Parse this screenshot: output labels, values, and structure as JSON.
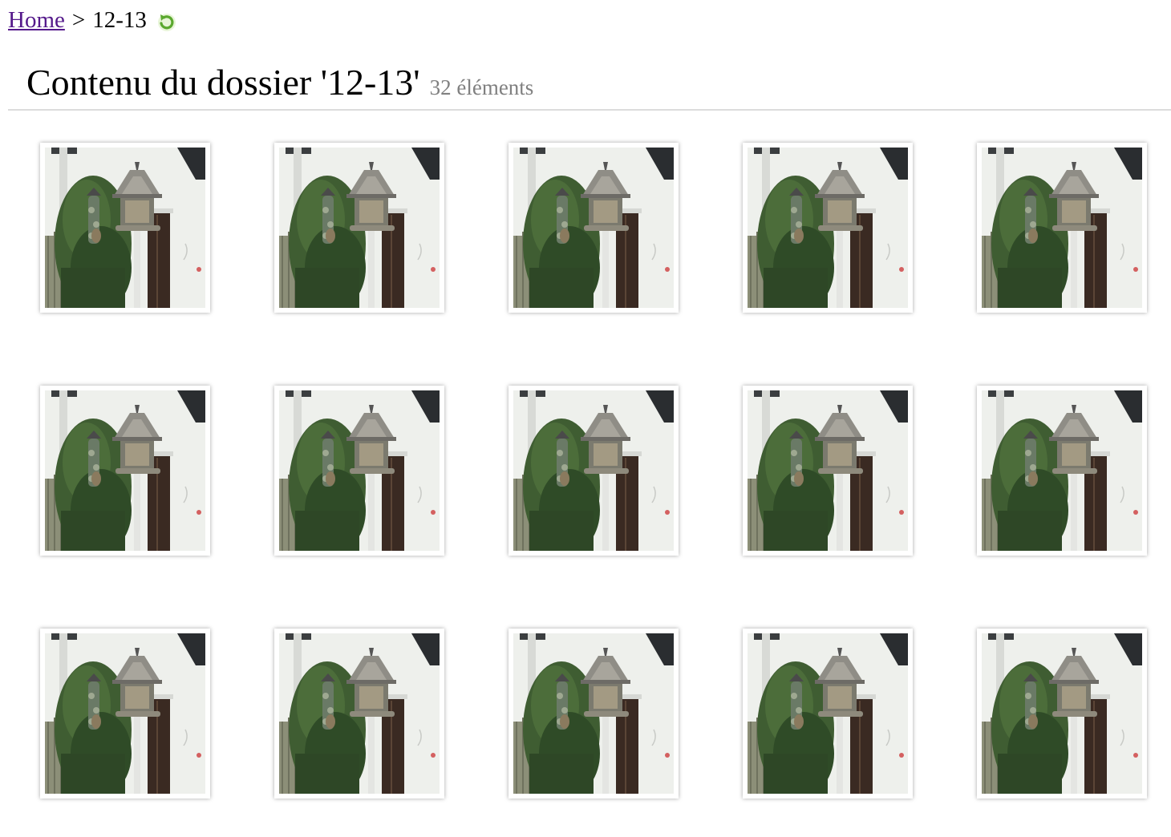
{
  "breadcrumb": {
    "home_label": "Home",
    "separator": ">",
    "current": "12-13",
    "refresh_icon": "refresh-icon"
  },
  "header": {
    "title": "Contenu du dossier '12-13'",
    "count_label": "32 éléments"
  },
  "gallery": {
    "thumbnail_icon": "photo-thumbnail",
    "visible_rows": 3,
    "visible_columns": 5
  },
  "colors": {
    "link": "#551a8b",
    "muted": "#808080",
    "divider": "#dcdcdc",
    "refresh_green": "#6dbb3a"
  }
}
